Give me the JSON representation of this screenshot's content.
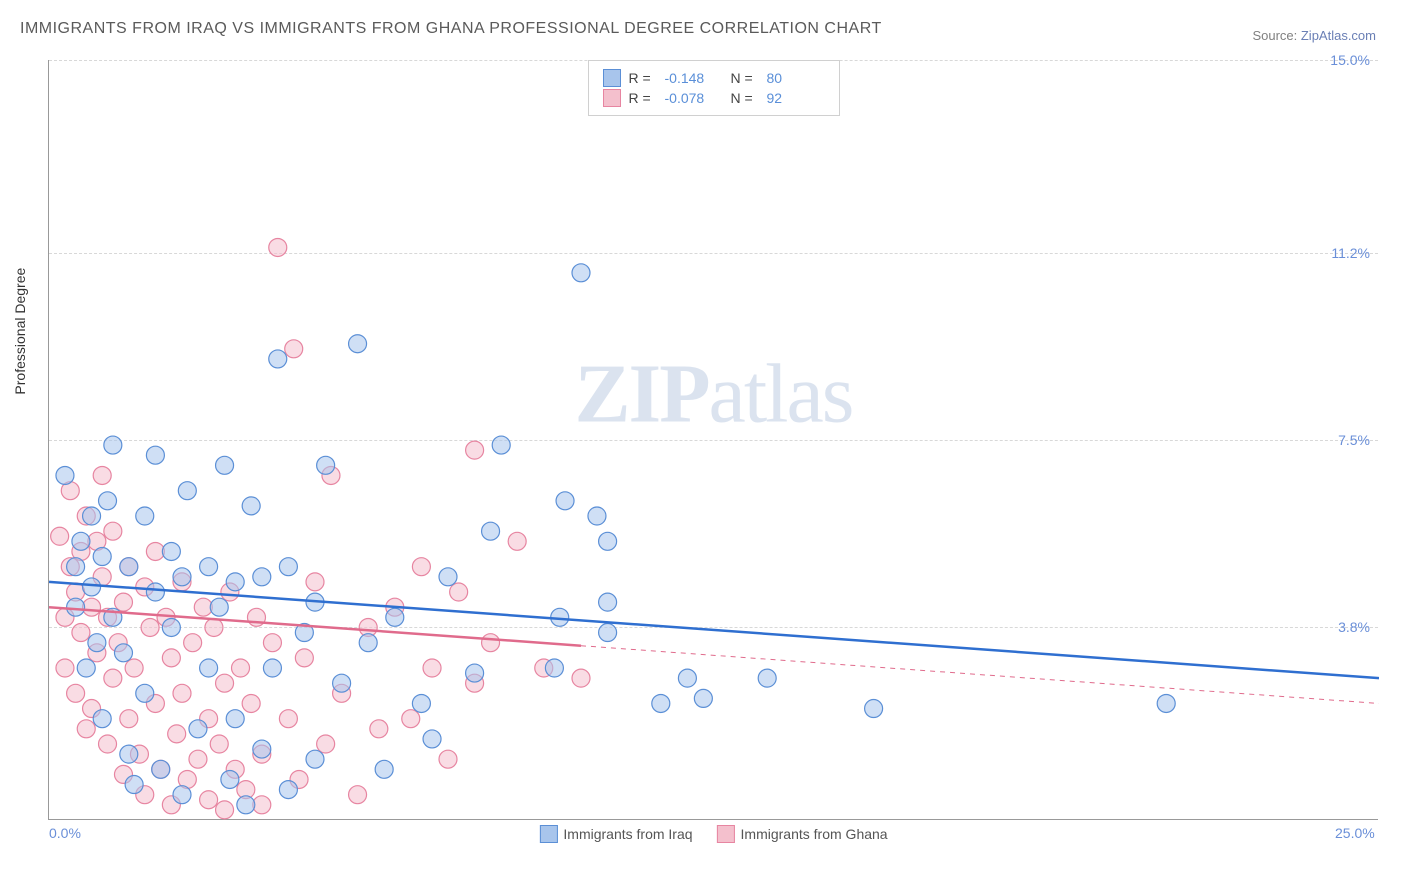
{
  "title": "IMMIGRANTS FROM IRAQ VS IMMIGRANTS FROM GHANA PROFESSIONAL DEGREE CORRELATION CHART",
  "source_prefix": "Source: ",
  "source_link": "ZipAtlas.com",
  "y_axis_label": "Professional Degree",
  "watermark_bold": "ZIP",
  "watermark_light": "atlas",
  "chart": {
    "type": "scatter",
    "xlim": [
      0,
      25
    ],
    "ylim": [
      0,
      15
    ],
    "x_ticks": [
      {
        "value": 0,
        "label": "0.0%"
      },
      {
        "value": 25,
        "label": "25.0%"
      }
    ],
    "y_ticks": [
      {
        "value": 3.8,
        "label": "3.8%"
      },
      {
        "value": 7.5,
        "label": "7.5%"
      },
      {
        "value": 11.2,
        "label": "11.2%"
      },
      {
        "value": 15.0,
        "label": "15.0%"
      }
    ],
    "background_color": "#ffffff",
    "grid_color": "#d8d8d8",
    "axis_color": "#999999",
    "tick_label_color": "#6a8fd8",
    "marker_radius": 9,
    "marker_opacity": 0.55,
    "trend_line_width": 2.5,
    "dashed_line_width": 1,
    "series": [
      {
        "name": "Immigrants from Iraq",
        "fill_color": "#a8c5ec",
        "stroke_color": "#5b8fd6",
        "line_color": "#2f6fd0",
        "R": "-0.148",
        "N": "80",
        "trend": {
          "x1": 0,
          "y1": 4.7,
          "x2": 25,
          "y2": 2.8,
          "solid_until_x": 25
        },
        "points": [
          [
            0.3,
            6.8
          ],
          [
            0.5,
            5.0
          ],
          [
            0.5,
            4.2
          ],
          [
            0.6,
            5.5
          ],
          [
            0.7,
            3.0
          ],
          [
            0.8,
            4.6
          ],
          [
            0.8,
            6.0
          ],
          [
            0.9,
            3.5
          ],
          [
            1.0,
            5.2
          ],
          [
            1.0,
            2.0
          ],
          [
            1.1,
            6.3
          ],
          [
            1.2,
            4.0
          ],
          [
            1.2,
            7.4
          ],
          [
            1.4,
            3.3
          ],
          [
            1.5,
            5.0
          ],
          [
            1.5,
            1.3
          ],
          [
            1.6,
            0.7
          ],
          [
            1.8,
            6.0
          ],
          [
            1.8,
            2.5
          ],
          [
            2.0,
            7.2
          ],
          [
            2.0,
            4.5
          ],
          [
            2.1,
            1.0
          ],
          [
            2.3,
            5.3
          ],
          [
            2.3,
            3.8
          ],
          [
            2.5,
            4.8
          ],
          [
            2.5,
            0.5
          ],
          [
            2.6,
            6.5
          ],
          [
            2.8,
            1.8
          ],
          [
            3.0,
            5.0
          ],
          [
            3.0,
            3.0
          ],
          [
            3.2,
            4.2
          ],
          [
            3.3,
            7.0
          ],
          [
            3.4,
            0.8
          ],
          [
            3.5,
            2.0
          ],
          [
            3.5,
            4.7
          ],
          [
            3.7,
            0.3
          ],
          [
            3.8,
            6.2
          ],
          [
            4.0,
            1.4
          ],
          [
            4.0,
            4.8
          ],
          [
            4.2,
            3.0
          ],
          [
            4.3,
            9.1
          ],
          [
            4.5,
            0.6
          ],
          [
            4.5,
            5.0
          ],
          [
            4.8,
            3.7
          ],
          [
            5.0,
            1.2
          ],
          [
            5.0,
            4.3
          ],
          [
            5.2,
            7.0
          ],
          [
            5.5,
            2.7
          ],
          [
            5.8,
            9.4
          ],
          [
            6.0,
            3.5
          ],
          [
            6.3,
            1.0
          ],
          [
            6.5,
            4.0
          ],
          [
            7.0,
            2.3
          ],
          [
            7.2,
            1.6
          ],
          [
            7.5,
            4.8
          ],
          [
            8.0,
            2.9
          ],
          [
            8.3,
            5.7
          ],
          [
            8.5,
            7.4
          ],
          [
            9.5,
            3.0
          ],
          [
            9.6,
            4.0
          ],
          [
            9.7,
            6.3
          ],
          [
            10.0,
            10.8
          ],
          [
            10.3,
            6.0
          ],
          [
            10.5,
            3.7
          ],
          [
            10.5,
            5.5
          ],
          [
            10.5,
            4.3
          ],
          [
            11.5,
            2.3
          ],
          [
            12.0,
            2.8
          ],
          [
            12.3,
            2.4
          ],
          [
            13.5,
            2.8
          ],
          [
            15.5,
            2.2
          ],
          [
            21.0,
            2.3
          ]
        ]
      },
      {
        "name": "Immigrants from Ghana",
        "fill_color": "#f4c0cd",
        "stroke_color": "#e785a1",
        "line_color": "#e06b8c",
        "R": "-0.078",
        "N": "92",
        "trend": {
          "x1": 0,
          "y1": 4.2,
          "x2": 25,
          "y2": 2.3,
          "solid_until_x": 10
        },
        "points": [
          [
            0.2,
            5.6
          ],
          [
            0.3,
            4.0
          ],
          [
            0.3,
            3.0
          ],
          [
            0.4,
            5.0
          ],
          [
            0.4,
            6.5
          ],
          [
            0.5,
            2.5
          ],
          [
            0.5,
            4.5
          ],
          [
            0.6,
            3.7
          ],
          [
            0.6,
            5.3
          ],
          [
            0.7,
            1.8
          ],
          [
            0.7,
            6.0
          ],
          [
            0.8,
            4.2
          ],
          [
            0.8,
            2.2
          ],
          [
            0.9,
            5.5
          ],
          [
            0.9,
            3.3
          ],
          [
            1.0,
            4.8
          ],
          [
            1.0,
            6.8
          ],
          [
            1.1,
            1.5
          ],
          [
            1.1,
            4.0
          ],
          [
            1.2,
            2.8
          ],
          [
            1.2,
            5.7
          ],
          [
            1.3,
            3.5
          ],
          [
            1.4,
            0.9
          ],
          [
            1.4,
            4.3
          ],
          [
            1.5,
            2.0
          ],
          [
            1.5,
            5.0
          ],
          [
            1.6,
            3.0
          ],
          [
            1.7,
            1.3
          ],
          [
            1.8,
            4.6
          ],
          [
            1.8,
            0.5
          ],
          [
            1.9,
            3.8
          ],
          [
            2.0,
            2.3
          ],
          [
            2.0,
            5.3
          ],
          [
            2.1,
            1.0
          ],
          [
            2.2,
            4.0
          ],
          [
            2.3,
            0.3
          ],
          [
            2.3,
            3.2
          ],
          [
            2.4,
            1.7
          ],
          [
            2.5,
            4.7
          ],
          [
            2.5,
            2.5
          ],
          [
            2.6,
            0.8
          ],
          [
            2.7,
            3.5
          ],
          [
            2.8,
            1.2
          ],
          [
            2.9,
            4.2
          ],
          [
            3.0,
            2.0
          ],
          [
            3.0,
            0.4
          ],
          [
            3.1,
            3.8
          ],
          [
            3.2,
            1.5
          ],
          [
            3.3,
            2.7
          ],
          [
            3.3,
            0.2
          ],
          [
            3.4,
            4.5
          ],
          [
            3.5,
            1.0
          ],
          [
            3.6,
            3.0
          ],
          [
            3.7,
            0.6
          ],
          [
            3.8,
            2.3
          ],
          [
            3.9,
            4.0
          ],
          [
            4.0,
            1.3
          ],
          [
            4.0,
            0.3
          ],
          [
            4.2,
            3.5
          ],
          [
            4.3,
            11.3
          ],
          [
            4.5,
            2.0
          ],
          [
            4.6,
            9.3
          ],
          [
            4.7,
            0.8
          ],
          [
            4.8,
            3.2
          ],
          [
            5.0,
            4.7
          ],
          [
            5.2,
            1.5
          ],
          [
            5.3,
            6.8
          ],
          [
            5.5,
            2.5
          ],
          [
            5.8,
            0.5
          ],
          [
            6.0,
            3.8
          ],
          [
            6.2,
            1.8
          ],
          [
            6.5,
            4.2
          ],
          [
            6.8,
            2.0
          ],
          [
            7.0,
            5.0
          ],
          [
            7.2,
            3.0
          ],
          [
            7.5,
            1.2
          ],
          [
            7.7,
            4.5
          ],
          [
            8.0,
            2.7
          ],
          [
            8.0,
            7.3
          ],
          [
            8.3,
            3.5
          ],
          [
            8.8,
            5.5
          ],
          [
            9.3,
            3.0
          ],
          [
            10.0,
            2.8
          ]
        ]
      }
    ]
  },
  "legend_top": {
    "border_color": "#d0d0d0",
    "r_label": "R =",
    "n_label": "N ="
  },
  "legend_bottom": {
    "items": [
      "Immigrants from Iraq",
      "Immigrants from Ghana"
    ]
  }
}
